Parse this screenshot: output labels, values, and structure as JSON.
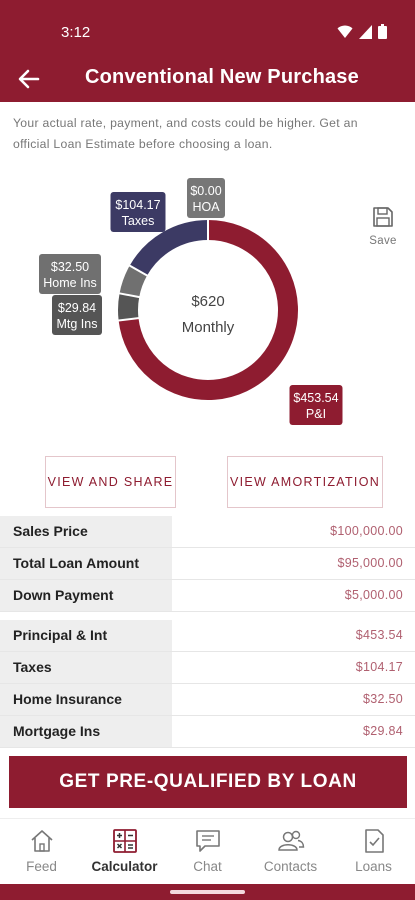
{
  "status": {
    "time": "3:12"
  },
  "header": {
    "title": "Conventional New Purchase"
  },
  "disclaimer": "Your actual rate, payment, and costs could be higher. Get an official Loan Estimate before choosing a loan.",
  "colors": {
    "brand": "#8e1c30",
    "taxes": "#3c3a64",
    "home_ins": "#707070",
    "mtg_ins": "#555555",
    "hoa": "#777777",
    "value_text": "#b06070"
  },
  "chart_data": {
    "type": "pie",
    "variant": "donut",
    "center_amount": "$620",
    "center_label": "Monthly",
    "slices": [
      {
        "label": "P&I",
        "value": 453.54,
        "display": "$453.54",
        "color": "#8e1c30"
      },
      {
        "label": "Mtg Ins",
        "value": 29.84,
        "display": "$29.84",
        "color": "#555555"
      },
      {
        "label": "Home Ins",
        "value": 32.5,
        "display": "$32.50",
        "color": "#707070"
      },
      {
        "label": "Taxes",
        "value": 104.17,
        "display": "$104.17",
        "color": "#3c3a64"
      },
      {
        "label": "HOA",
        "value": 0.0,
        "display": "$0.00",
        "color": "#777777"
      }
    ]
  },
  "save": {
    "label": "Save",
    "icon": "floppy-disk-icon"
  },
  "actions": {
    "view_share": "VIEW AND SHARE",
    "view_amortization": "VIEW AMORTIZATION"
  },
  "loan_details": [
    {
      "label": "Sales Price",
      "value": "$100,000.00"
    },
    {
      "label": "Total Loan Amount",
      "value": "$95,000.00"
    },
    {
      "label": "Down Payment",
      "value": "$5,000.00"
    }
  ],
  "payment_details": [
    {
      "label": "Principal & Int",
      "value": "$453.54"
    },
    {
      "label": "Taxes",
      "value": "$104.17"
    },
    {
      "label": "Home Insurance",
      "value": "$32.50"
    },
    {
      "label": "Mortgage Ins",
      "value": "$29.84"
    }
  ],
  "cta": {
    "label": "GET PRE-QUALIFIED BY LOAN"
  },
  "nav": {
    "items": [
      {
        "label": "Feed",
        "icon": "home-icon"
      },
      {
        "label": "Calculator",
        "icon": "calculator-icon",
        "active": true
      },
      {
        "label": "Chat",
        "icon": "chat-icon"
      },
      {
        "label": "Contacts",
        "icon": "contacts-icon"
      },
      {
        "label": "Loans",
        "icon": "document-icon"
      }
    ]
  }
}
